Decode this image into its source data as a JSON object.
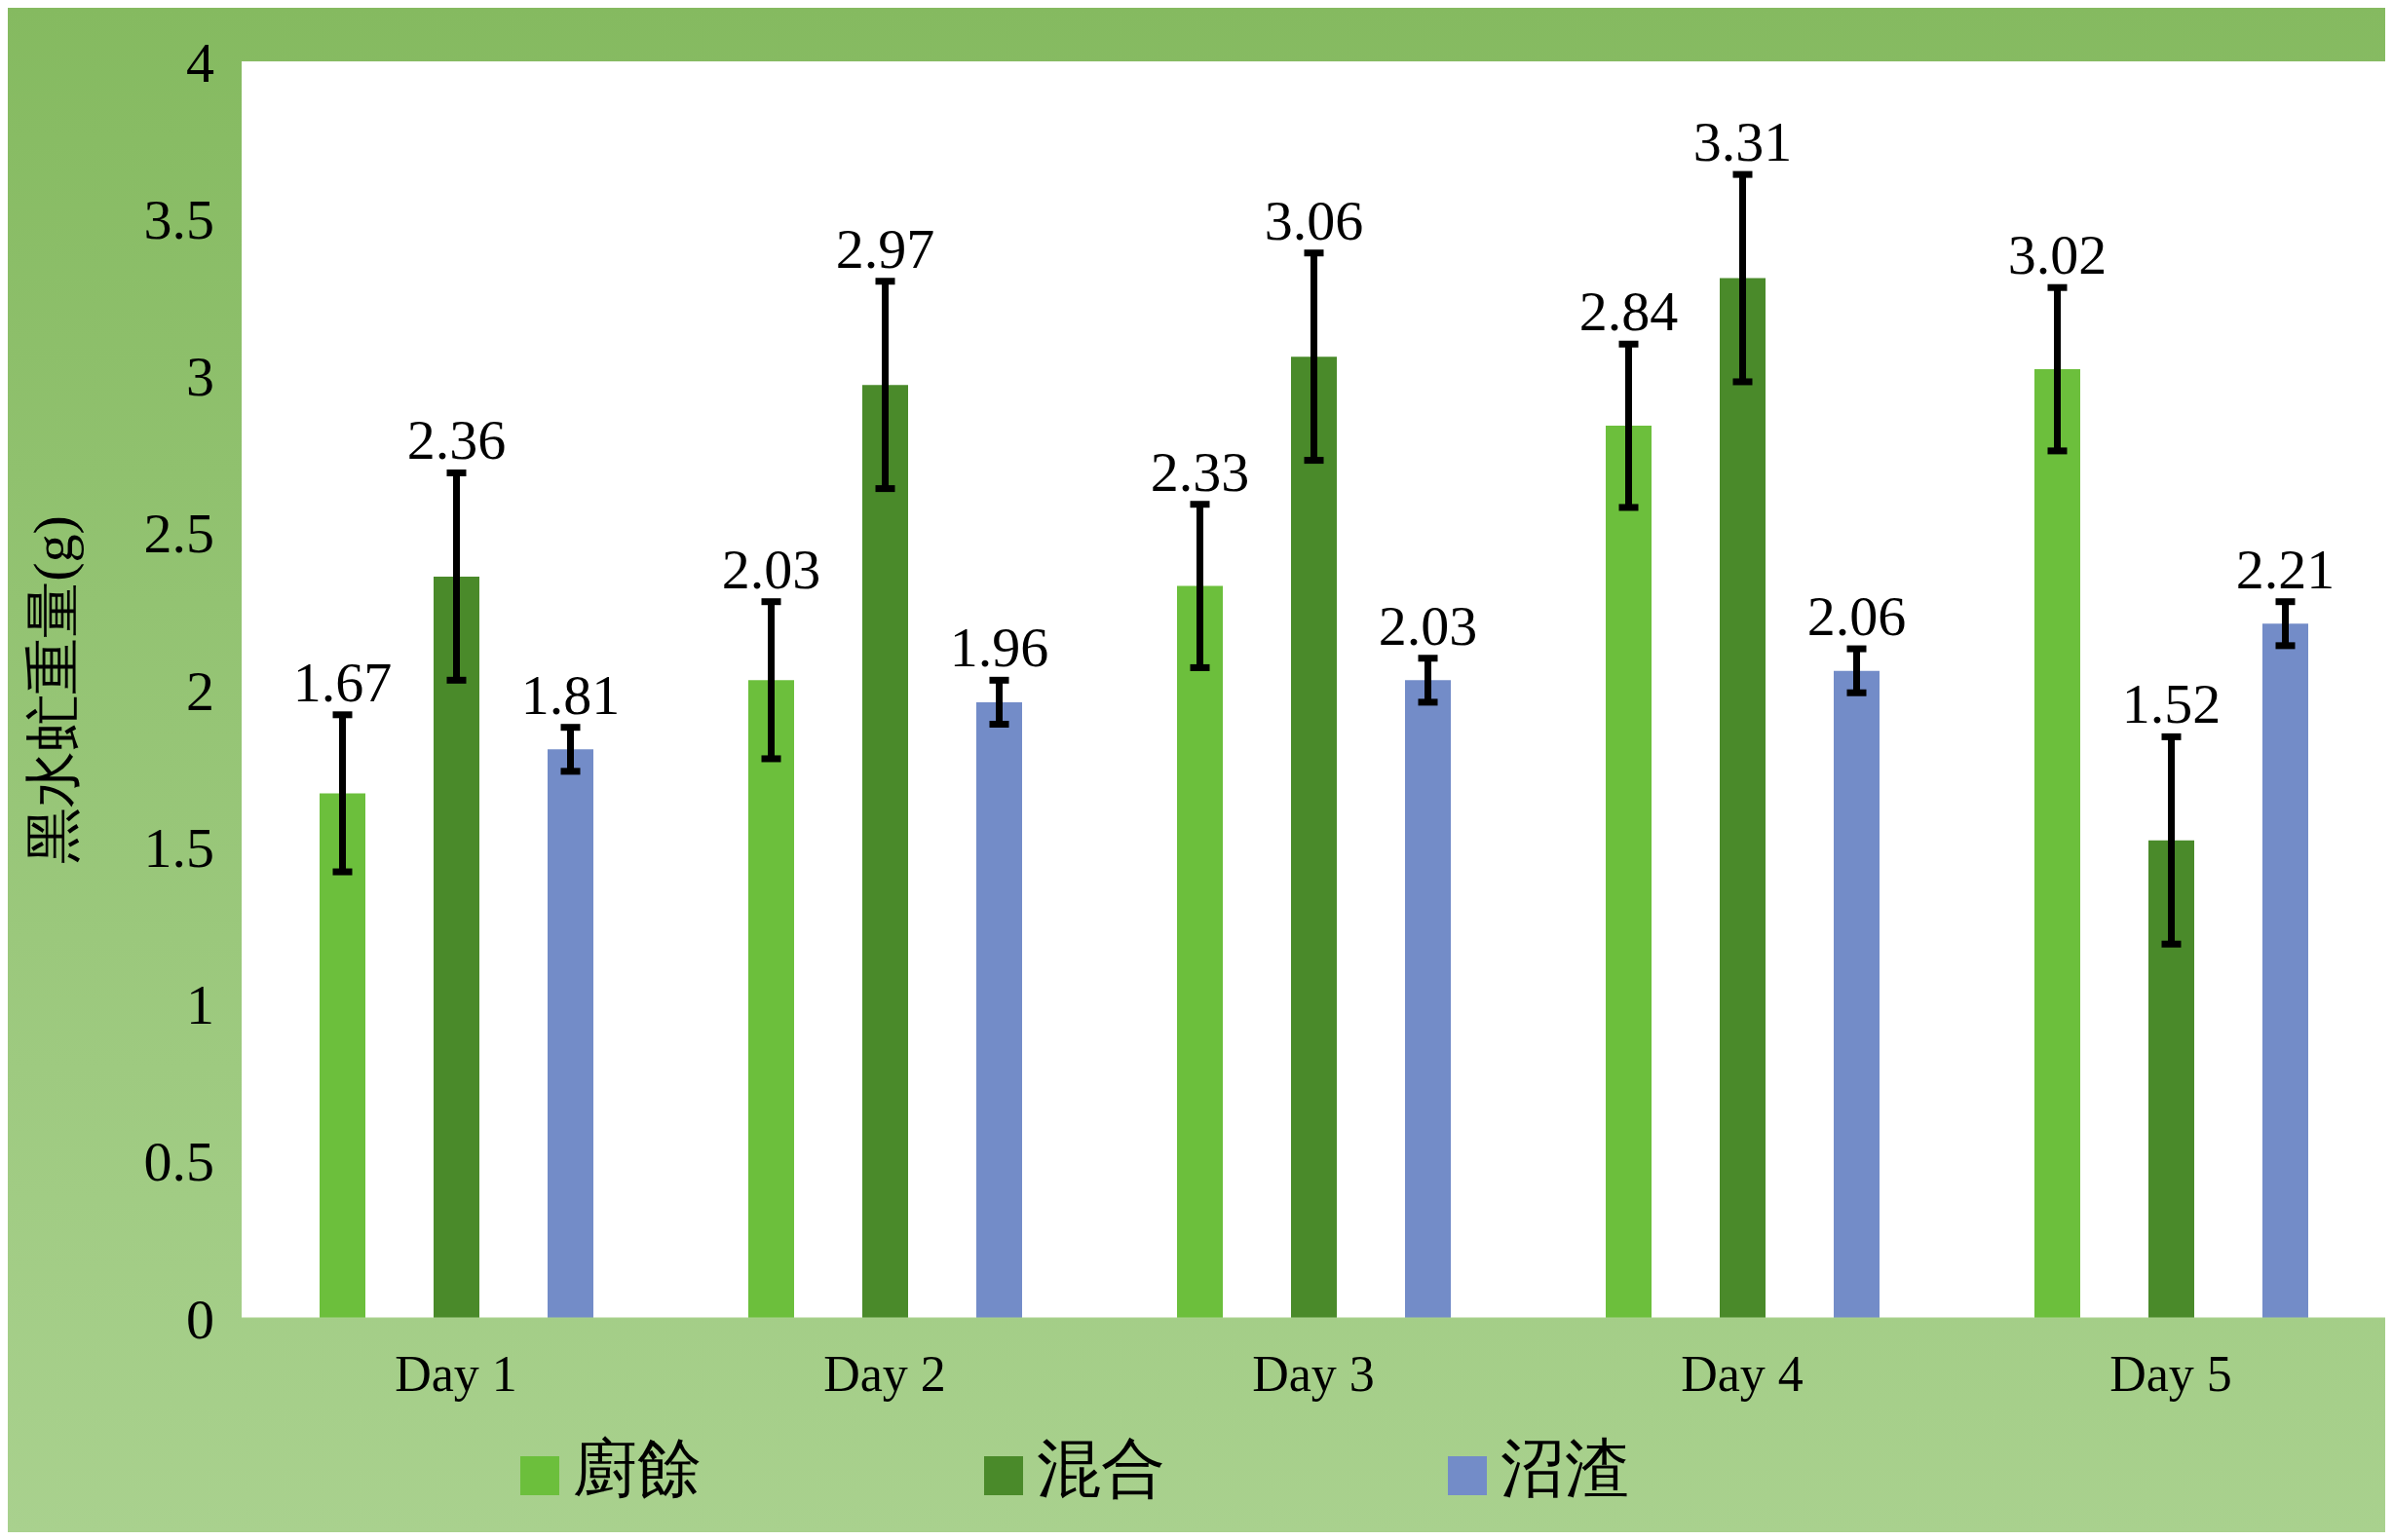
{
  "chart_data": {
    "type": "bar",
    "ylabel": "黑水虻重量(g)",
    "categories": [
      "Day 1",
      "Day 2",
      "Day 3",
      "Day 4",
      "Day 5"
    ],
    "series": [
      {
        "name": "廚餘",
        "color": "#6cbf3c",
        "values": [
          1.67,
          2.03,
          2.33,
          2.84,
          3.02
        ],
        "errors": [
          0.25,
          0.25,
          0.26,
          0.26,
          0.26
        ]
      },
      {
        "name": "混合",
        "color": "#4a8a2a",
        "values": [
          2.36,
          2.97,
          3.06,
          3.31,
          1.52
        ],
        "errors": [
          0.33,
          0.33,
          0.33,
          0.33,
          0.33
        ]
      },
      {
        "name": "沼渣",
        "color": "#738cc8",
        "values": [
          1.81,
          1.96,
          2.03,
          2.06,
          2.21
        ],
        "errors": [
          0.07,
          0.07,
          0.07,
          0.07,
          0.07
        ]
      }
    ],
    "ylim": [
      0,
      4
    ],
    "yticks": [
      0,
      0.5,
      1,
      1.5,
      2,
      2.5,
      3,
      3.5,
      4
    ],
    "grid": false,
    "legend": "bottom",
    "data_labels": true
  }
}
